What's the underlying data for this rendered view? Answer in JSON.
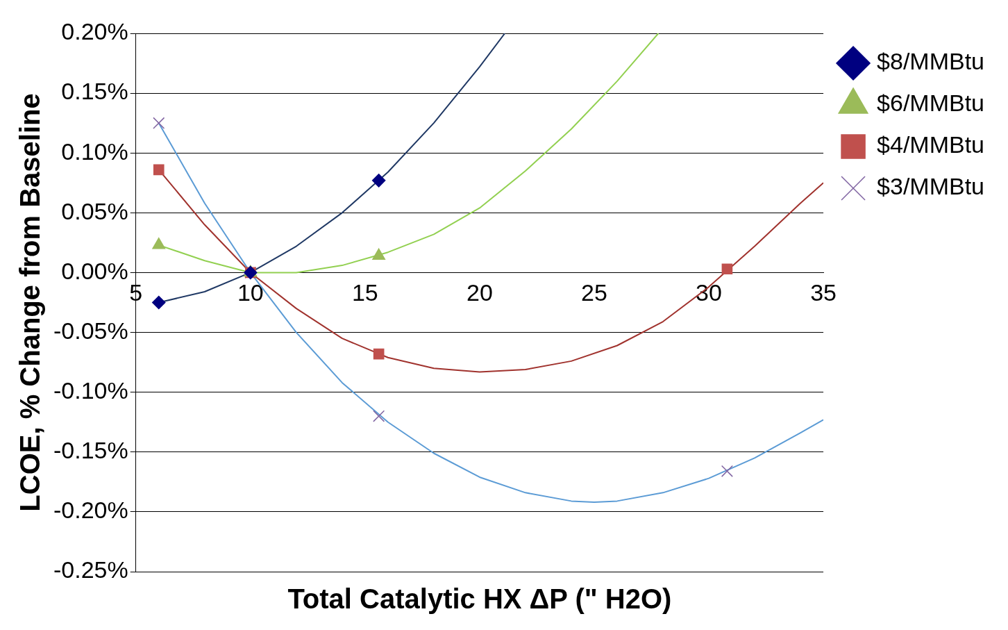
{
  "chart_data": {
    "type": "scatter",
    "xlabel": "Total Catalytic HX ΔP (\" H2O)",
    "ylabel": "LCOE, % Change from Baseline",
    "xlim": [
      5,
      35
    ],
    "xticks": [
      5,
      10,
      15,
      20,
      25,
      30,
      35
    ],
    "ylim": [
      -0.25,
      0.2
    ],
    "yticks": [
      {
        "value": -0.25,
        "label": "-0.25%"
      },
      {
        "value": -0.2,
        "label": "-0.20%"
      },
      {
        "value": -0.15,
        "label": "-0.15%"
      },
      {
        "value": -0.1,
        "label": "-0.10%"
      },
      {
        "value": -0.05,
        "label": "-0.05%"
      },
      {
        "value": 0,
        "label": "0.00%"
      },
      {
        "value": 0.05,
        "label": "0.05%"
      },
      {
        "value": 0.1,
        "label": "0.10%"
      },
      {
        "value": 0.15,
        "label": "0.15%"
      },
      {
        "value": 0.2,
        "label": "0.20%"
      }
    ],
    "grid": "y",
    "legend": "top right",
    "series": [
      {
        "type": "line",
        "color": "#1f3864",
        "marker": "none",
        "x": [
          6,
          8,
          10,
          12,
          14,
          16,
          18,
          20,
          21.1
        ],
        "values": [
          -0.025,
          -0.016,
          0,
          0.022,
          0.05,
          0.084,
          0.125,
          0.172,
          0.2
        ]
      },
      {
        "type": "line",
        "color": "#92d050",
        "marker": "none",
        "x": [
          6,
          8,
          10,
          12,
          14,
          16,
          18,
          20,
          22,
          24,
          26,
          27.8
        ],
        "values": [
          0.023,
          0.01,
          0,
          0,
          0.006,
          0.017,
          0.032,
          0.054,
          0.085,
          0.12,
          0.16,
          0.2
        ]
      },
      {
        "type": "line",
        "color": "#a0322d",
        "marker": "none",
        "x": [
          6,
          8,
          10,
          12,
          14,
          16,
          18,
          20,
          22,
          24,
          26,
          28,
          30,
          32,
          34,
          35
        ],
        "values": [
          0.086,
          0.04,
          0,
          -0.03,
          -0.055,
          -0.071,
          -0.08,
          -0.083,
          -0.081,
          -0.074,
          -0.061,
          -0.041,
          -0.012,
          0.022,
          0.058,
          0.075
        ]
      },
      {
        "type": "line",
        "color": "#5b9bd5",
        "marker": "none",
        "x": [
          6,
          8,
          10,
          12,
          14,
          16,
          18,
          20,
          22,
          24,
          25,
          26,
          28,
          30,
          32,
          34,
          35
        ],
        "values": [
          0.125,
          0.058,
          0,
          -0.05,
          -0.092,
          -0.125,
          -0.151,
          -0.171,
          -0.184,
          -0.191,
          -0.192,
          -0.191,
          -0.184,
          -0.172,
          -0.155,
          -0.134,
          -0.123
        ]
      },
      {
        "name": "$8/MMBtu",
        "color": "#000080",
        "marker": "diamond",
        "x": [
          6,
          10,
          15.6
        ],
        "values": [
          -0.025,
          0,
          0.077
        ]
      },
      {
        "name": "$6/MMBtu",
        "color": "#9bbb59",
        "marker": "triangle",
        "x": [
          6,
          10,
          15.6
        ],
        "values": [
          0.023,
          0,
          0.014
        ]
      },
      {
        "name": "$4/MMBtu",
        "color": "#c0504d",
        "marker": "square",
        "x": [
          6,
          10,
          15.6,
          30.8
        ],
        "values": [
          0.086,
          0,
          -0.068,
          0.003
        ]
      },
      {
        "name": "$3/MMBtu",
        "color": "#8064a2",
        "marker": "cross",
        "x": [
          6,
          10,
          15.6,
          30.8
        ],
        "values": [
          0.125,
          0,
          -0.12,
          -0.166
        ]
      }
    ]
  }
}
